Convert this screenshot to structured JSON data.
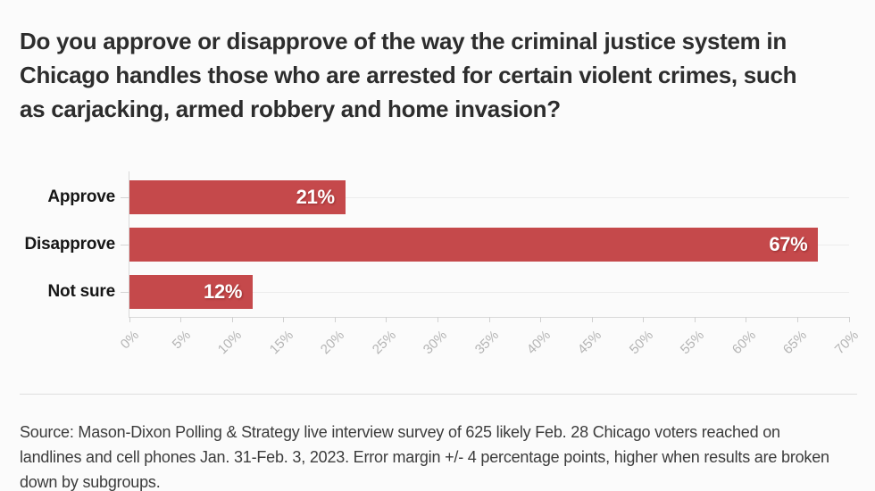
{
  "title": "Do you approve or disapprove of the way the criminal justice system in Chicago handles those who are arrested for certain violent crimes, such as carjacking, armed robbery and home invasion?",
  "source": "Source: Mason-Dixon Polling & Strategy live interview survey of 625 likely Feb. 28 Chicago voters reached on landlines and cell phones Jan. 31-Feb. 3, 2023. Error margin +/- 4 percentage points, higher when results are broken down by subgroups.",
  "chart_data": {
    "type": "bar",
    "orientation": "horizontal",
    "categories": [
      "Approve",
      "Disapprove",
      "Not sure"
    ],
    "values": [
      21,
      67,
      12
    ],
    "value_labels": [
      "21%",
      "67%",
      "12%"
    ],
    "xlim": [
      0,
      70
    ],
    "tick_step": 5,
    "tick_labels": [
      "0%",
      "5%",
      "10%",
      "15%",
      "20%",
      "25%",
      "30%",
      "35%",
      "40%",
      "45%",
      "50%",
      "55%",
      "60%",
      "65%",
      "70%"
    ],
    "bar_color": "#c5494b",
    "grid": "horizontal-row-lines",
    "legend": "none",
    "title": "Do you approve or disapprove of the way the criminal justice system in Chicago handles those who are arrested for certain violent crimes, such as carjacking, armed robbery and home invasion?",
    "xlabel": "",
    "ylabel": ""
  },
  "colors": {
    "background": "#fbfbfb",
    "bar": "#c5494b",
    "title_text": "#2d2d2d",
    "category_text": "#161616",
    "value_text": "#ffffff",
    "tick_text": "#b4b4b4",
    "axis_line": "#d9d9d9",
    "gridline": "#ececec",
    "divider": "#dedede",
    "source_text": "#3c3c3c"
  }
}
